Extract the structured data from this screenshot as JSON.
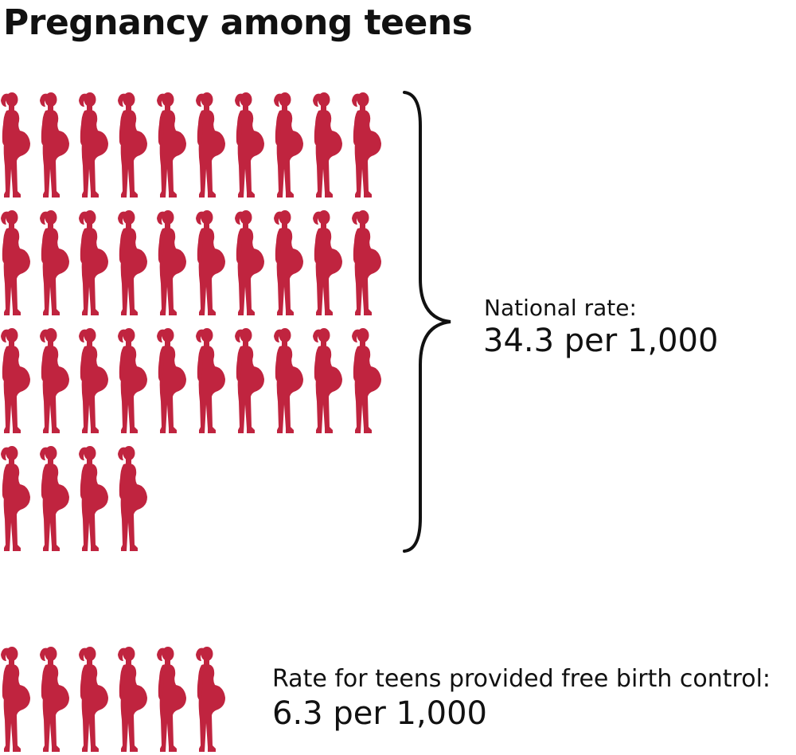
{
  "title": "Pregnancy among teens",
  "colors": {
    "figure": "#c0243f",
    "text": "#111111",
    "brace": "#111111"
  },
  "icon": "pregnant-woman-silhouette-icon",
  "chart_data": {
    "type": "pictograph",
    "title": "Pregnancy among teens",
    "unit": "per 1,000",
    "series": [
      {
        "label": "National rate:",
        "value_text": "34.3 per 1,000",
        "value": 34.3
      },
      {
        "label": "Rate for teens provided free birth control:",
        "value_text": "6.3 per 1,000",
        "value": 6.3
      }
    ]
  }
}
